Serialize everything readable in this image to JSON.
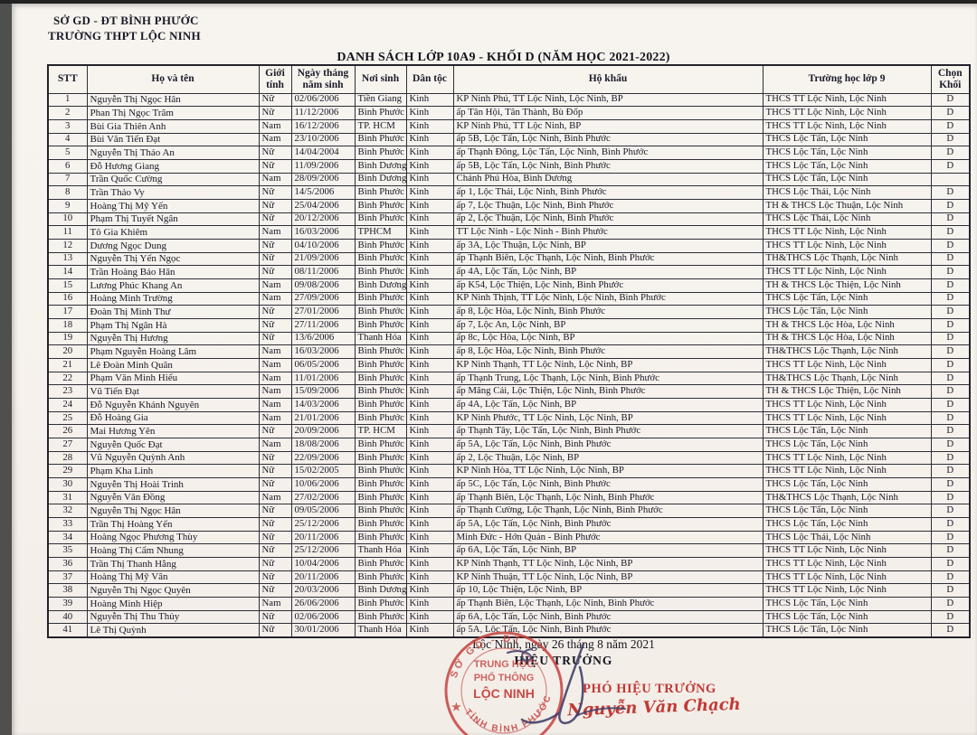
{
  "page": {
    "org_line1": "SỞ GD - ĐT BÌNH PHƯỚC",
    "org_line2": "TRƯỜNG THPT LỘC NINH",
    "title": "DANH SÁCH LỚP 10A9 - KHỐI D (NĂM HỌC 2021-2022)"
  },
  "table": {
    "headers": [
      "STT",
      "Họ và tên",
      "Giới tính",
      "Ngày tháng năm sinh",
      "Nơi sinh",
      "Dân tộc",
      "Hộ khẩu",
      "Trường học lớp 9",
      "Chọn Khối"
    ],
    "rows": [
      [
        "1",
        "Nguyễn Thị Ngọc Hân",
        "Nữ",
        "02/06/2006",
        "Tiền Giang",
        "Kinh",
        "KP Ninh Phú, TT Lộc Ninh, Lộc Ninh, BP",
        "THCS TT Lộc Ninh, Lộc Ninh",
        "D"
      ],
      [
        "2",
        "Phan Thị Ngọc Trâm",
        "Nữ",
        "11/12/2006",
        "Bình Phước",
        "Kinh",
        "ấp Tân Hội, Tân Thành, Bù Đốp",
        "THCS TT Lộc Ninh, Lộc Ninh",
        "D"
      ],
      [
        "3",
        "Bùi Gia Thiên Anh",
        "Nam",
        "16/12/2006",
        "TP. HCM",
        "Kinh",
        "KP Ninh Phú, TT Lộc Ninh, BP",
        "THCS TT Lộc Ninh, Lộc Ninh",
        "D"
      ],
      [
        "4",
        "Bùi Văn Tiến Đạt",
        "Nam",
        "23/10/2006",
        "Bình Phước",
        "Kinh",
        "ấp 5B, Lộc Tấn, Lộc Ninh, Bình Phước",
        "THCS Lộc Tấn, Lộc Ninh",
        "D"
      ],
      [
        "5",
        "Nguyễn Thị Thảo An",
        "Nữ",
        "14/04/2004",
        "Bình Phước",
        "Kinh",
        "ấp Thạnh Đông, Lộc Tấn, Lộc Ninh, Bình Phước",
        "THCS Lộc Tấn, Lộc Ninh",
        "D"
      ],
      [
        "6",
        "Đỗ Hương Giang",
        "Nữ",
        "11/09/2006",
        "Bình Dương",
        "Kinh",
        "ấp 5B, Lộc Tấn, Lộc Ninh, Bình Phước",
        "THCS Lộc Tấn, Lộc Ninh",
        "D"
      ],
      [
        "7",
        "Trần Quốc Cường",
        "Nam",
        "28/09/2006",
        "Bình Dương",
        "Kinh",
        "Chánh Phú Hòa, Bình Dương",
        "THCS Lộc Tấn, Lộc Ninh",
        ""
      ],
      [
        "8",
        "Trần Thảo Vy",
        "Nữ",
        "14/5/2006",
        "Bình Phước",
        "Kinh",
        "ấp 1, Lộc Thái, Lộc Ninh, Bình Phước",
        "THCS Lộc Thái, Lộc Ninh",
        "D"
      ],
      [
        "9",
        "Hoàng Thị Mỹ Yến",
        "Nữ",
        "25/04/2006",
        "Bình Phước",
        "Kinh",
        "ấp 7, Lộc Thuận, Lộc Ninh, Bình Phước",
        "TH & THCS Lộc Thuận, Lộc Ninh",
        "D"
      ],
      [
        "10",
        "Phạm Thị Tuyết Ngân",
        "Nữ",
        "20/12/2006",
        "Bình Phước",
        "Kinh",
        "ấp 2, Lộc Thuận, Lộc Ninh, Bình Phước",
        "THCS Lộc Thái, Lộc Ninh",
        "D"
      ],
      [
        "11",
        "Tô Gia Khiêm",
        "Nam",
        "16/03/2006",
        "TPHCM",
        "Kinh",
        "TT Lộc Ninh - Lộc Ninh - Bình Phước",
        "THCS TT Lộc Ninh, Lộc Ninh",
        "D"
      ],
      [
        "12",
        "Dương Ngọc Dung",
        "Nữ",
        "04/10/2006",
        "Bình Phước",
        "Kinh",
        "ấp 3A, Lộc Thuận, Lộc Ninh, BP",
        "THCS TT Lộc Ninh, Lộc Ninh",
        "D"
      ],
      [
        "13",
        "Nguyễn Thị Yến Ngọc",
        "Nữ",
        "21/09/2006",
        "Bình Phước",
        "Kinh",
        "ấp Thạnh Biên, Lộc Thạnh, Lộc Ninh, Bình Phước",
        "TH&THCS Lộc Thạnh, Lộc Ninh",
        "D"
      ],
      [
        "14",
        "Trần Hoàng Bảo Hân",
        "Nữ",
        "08/11/2006",
        "Bình Phước",
        "Kinh",
        "ấp 4A, Lộc Tấn, Lộc Ninh, BP",
        "THCS TT Lộc Ninh, Lộc Ninh",
        "D"
      ],
      [
        "15",
        "Lương Phúc Khang An",
        "Nam",
        "09/08/2006",
        "Bình Dương",
        "Kinh",
        "ấp K54, Lộc Thiện, Lộc Ninh, Bình Phước",
        "TH & THCS Lộc Thiện, Lộc Ninh",
        "D"
      ],
      [
        "16",
        "Hoàng Minh Trường",
        "Nam",
        "27/09/2006",
        "Bình Phước",
        "Kinh",
        "KP Ninh Thịnh, TT Lộc Ninh, Lộc Ninh, Bình Phước",
        "THCS Lộc Tấn, Lộc Ninh",
        "D"
      ],
      [
        "17",
        "Đoàn Thị Minh Thư",
        "Nữ",
        "27/01/2006",
        "Bình Phước",
        "Kinh",
        "ấp 8, Lộc Hòa, Lộc Ninh, Bình Phước",
        "THCS Lộc Tấn, Lộc Ninh",
        "D"
      ],
      [
        "18",
        "Phạm Thị Ngân Hà",
        "Nữ",
        "27/11/2006",
        "Bình Phước",
        "Kinh",
        "ấp 7, Lộc An, Lộc Ninh, BP",
        "TH & THCS Lộc Hòa, Lộc Ninh",
        "D"
      ],
      [
        "19",
        "Nguyễn Thị Hương",
        "Nữ",
        "13/6/2006",
        "Thanh Hóa",
        "Kinh",
        "ấp 8c, Lộc Hòa, Lộc Ninh, BP",
        "TH & THCS Lộc Hòa, Lộc Ninh",
        "D"
      ],
      [
        "20",
        "Phạm Nguyễn Hoàng Lâm",
        "Nam",
        "16/03/2006",
        "Bình Phước",
        "Kinh",
        "ấp 8, Lộc Hòa, Lộc Ninh, Bình Phước",
        "TH&THCS Lộc Thạnh, Lộc Ninh",
        "D"
      ],
      [
        "21",
        "Lê Đoàn Minh Quân",
        "Nam",
        "06/05/2006",
        "Bình Phước",
        "Kinh",
        "KP Ninh Thạnh, TT Lộc Ninh, Lộc Ninh, BP",
        "THCS TT Lộc Ninh, Lộc Ninh",
        "D"
      ],
      [
        "22",
        "Phạm Văn Minh Hiếu",
        "Nam",
        "11/01/2006",
        "Bình Phước",
        "Kinh",
        "ấp Thạnh Trung, Lộc Thạnh, Lộc Ninh, Bình Phước",
        "TH&THCS Lộc Thạnh, Lộc Ninh",
        "D"
      ],
      [
        "23",
        "Vũ Tiến Đạt",
        "Nam",
        "15/09/2006",
        "Bình Phước",
        "Kinh",
        "ấp Măng Cải, Lộc Thiện, Lộc Ninh, Bình Phước",
        "TH & THCS Lộc Thiện, Lộc Ninh",
        "D"
      ],
      [
        "24",
        "Đỗ Nguyễn Khánh Nguyên",
        "Nam",
        "14/03/2006",
        "Bình Phước",
        "Kinh",
        "ấp 4A, Lộc Tấn, Lộc Ninh, BP",
        "THCS TT Lộc Ninh, Lộc Ninh",
        "D"
      ],
      [
        "25",
        "Đỗ Hoàng Gia",
        "Nam",
        "21/01/2006",
        "Bình Phước",
        "Kinh",
        "KP Ninh Phước, TT Lộc Ninh, Lộc Ninh, BP",
        "THCS TT Lộc Ninh, Lộc Ninh",
        "D"
      ],
      [
        "26",
        "Mai Hương Yên",
        "Nữ",
        "20/09/2006",
        "TP. HCM",
        "Kinh",
        "ấp Thạnh Tây, Lộc Tấn, Lộc Ninh, Bình Phước",
        "THCS Lộc Tấn, Lộc Ninh",
        "D"
      ],
      [
        "27",
        "Nguyễn Quốc Đạt",
        "Nam",
        "18/08/2006",
        "Bình Phước",
        "Kinh",
        "ấp 5A, Lộc Tấn, Lộc Ninh, Bình Phước",
        "THCS Lộc Tấn, Lộc Ninh",
        "D"
      ],
      [
        "28",
        "Vũ Nguyễn Quỳnh Anh",
        "Nữ",
        "22/09/2006",
        "Bình Phước",
        "Kinh",
        "ấp 2, Lộc Thuận, Lộc Ninh, BP",
        "THCS TT Lộc Ninh, Lộc Ninh",
        "D"
      ],
      [
        "29",
        "Phạm Kha Linh",
        "Nữ",
        "15/02/2005",
        "Bình Phước",
        "Kinh",
        "KP Ninh Hòa, TT Lộc Ninh, Lộc Ninh, BP",
        "THCS TT Lộc Ninh, Lộc Ninh",
        "D"
      ],
      [
        "30",
        "Nguyễn Thị Hoài Trinh",
        "Nữ",
        "10/06/2006",
        "Bình Phước",
        "Kinh",
        "ấp 5C, Lộc Tấn, Lộc Ninh, Bình Phước",
        "THCS Lộc Tấn, Lộc Ninh",
        "D"
      ],
      [
        "31",
        "Nguyễn Văn Đồng",
        "Nam",
        "27/02/2006",
        "Bình Phước",
        "Kinh",
        "ấp Thạnh Biên, Lộc Thạnh, Lộc Ninh, Bình Phước",
        "TH&THCS Lộc Thạnh, Lộc Ninh",
        "D"
      ],
      [
        "32",
        "Nguyễn Thị Ngọc Hân",
        "Nữ",
        "09/05/2006",
        "Bình Phước",
        "Kinh",
        "ấp Thạnh Cường, Lộc Thạnh, Lộc Ninh, Bình Phước",
        "THCS Lộc Tấn, Lộc Ninh",
        "D"
      ],
      [
        "33",
        "Trần Thị Hoàng Yến",
        "Nữ",
        "25/12/2006",
        "Bình Phước",
        "Kinh",
        "ấp 5A, Lộc Tấn, Lộc Ninh, Bình Phước",
        "THCS Lộc Tấn, Lộc Ninh",
        "D"
      ],
      [
        "34",
        "Hoàng Ngọc Phương Thùy",
        "Nữ",
        "20/11/2006",
        "Bình Phước",
        "Kinh",
        "Minh Đức - Hớn Quản - Bình Phước",
        "THCS Lộc Thái, Lộc Ninh",
        "D"
      ],
      [
        "35",
        "Hoàng Thị Cẩm Nhung",
        "Nữ",
        "25/12/2006",
        "Thanh Hóa",
        "Kinh",
        "ấp 6A, Lộc Tấn, Lộc Ninh, BP",
        "THCS TT Lộc Ninh, Lộc Ninh",
        "D"
      ],
      [
        "36",
        "Trần Thị Thanh Hằng",
        "Nữ",
        "10/04/2006",
        "Bình Phước",
        "Kinh",
        "KP Ninh Thạnh, TT Lộc Ninh, Lộc Ninh, BP",
        "THCS TT Lộc Ninh, Lộc Ninh",
        "D"
      ],
      [
        "37",
        "Hoàng Thị Mỹ Vân",
        "Nữ",
        "20/11/2006",
        "Bình Phước",
        "Kinh",
        "KP Ninh Thuận, TT Lộc Ninh, Lộc Ninh, BP",
        "THCS TT Lộc Ninh, Lộc Ninh",
        "D"
      ],
      [
        "38",
        "Nguyễn Thị Ngọc Quyên",
        "Nữ",
        "20/03/2006",
        "Bình Dương",
        "Kinh",
        "ấp 10, Lộc Thiện, Lộc Ninh, BP",
        "THCS TT Lộc Ninh, Lộc Ninh",
        "D"
      ],
      [
        "39",
        "Hoàng Minh Hiệp",
        "Nam",
        "26/06/2006",
        "Bình Phước",
        "Kinh",
        "ấp Thạnh Biên, Lộc Thạnh, Lộc Ninh, Bình Phước",
        "THCS Lộc Tấn, Lộc Ninh",
        "D"
      ],
      [
        "40",
        "Nguyễn Thị Thu Thủy",
        "Nữ",
        "02/06/2006",
        "Bình Phước",
        "Kinh",
        "ấp 6A, Lộc Tấn, Lộc Ninh, Bình Phước",
        "THCS Lộc Tấn, Lộc Ninh",
        "D"
      ],
      [
        "41",
        "Lê Thị Quỳnh",
        "Nữ",
        "30/01/2006",
        "Thanh Hóa",
        "Kinh",
        "ấp 5A, Lộc Tấn, Lộc Ninh, Bình Phước",
        "THCS Lộc Tấn, Lộc Ninh",
        "D"
      ]
    ]
  },
  "footer": {
    "date_line": "Lộc Ninh, ngày 26 tháng 8 năm 2021",
    "principal_title": "HIỆU TRƯỞNG",
    "vice_principal_title": "PHÓ HIỆU TRƯỞNG",
    "signer_name": "Nguyễn Văn Chạch",
    "stamp": {
      "arc_top": "SỞ GD - ĐT",
      "arc_bottom": "TỈNH BÌNH PHƯỚC",
      "line1": "TRUNG HỌC",
      "line2": "PHỔ THÔNG",
      "line3": "LỘC NINH"
    },
    "colors": {
      "stamp_red": "#c5413d",
      "signature_red": "#c23a35",
      "ink_blue": "#43406a"
    }
  }
}
